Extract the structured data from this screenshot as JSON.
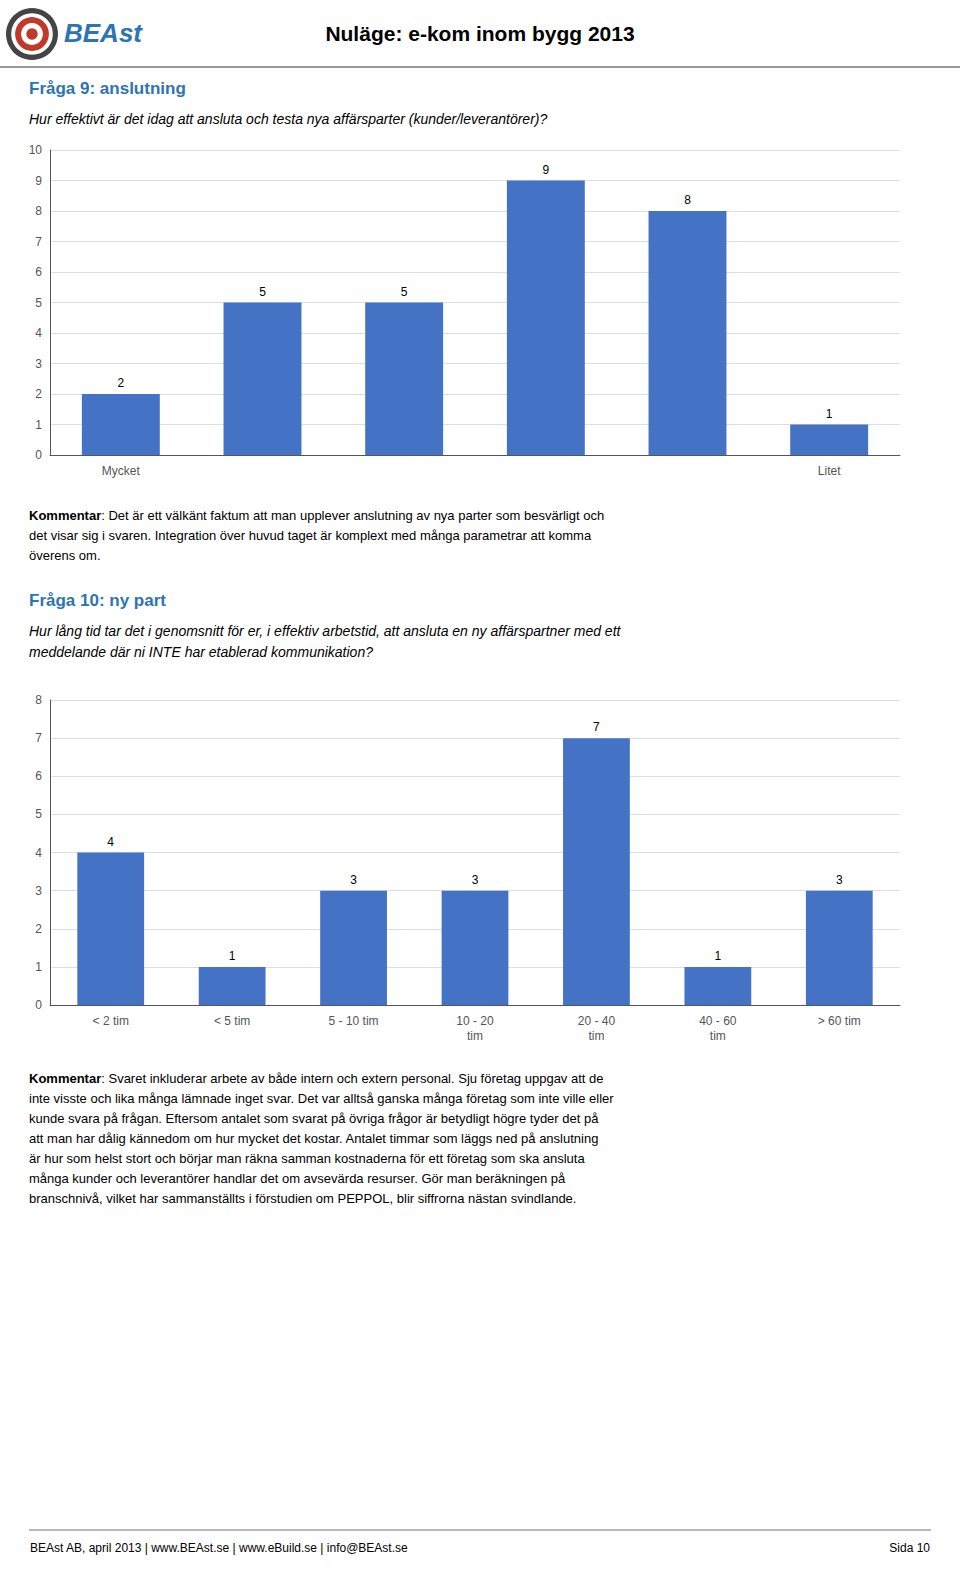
{
  "title": "Nuläge: e-kom inom bygg 2013",
  "annotations": [
    "BEAst",
    "BEAst AB, april 2013 | www.BEAst.se | www.eBuild.se | info@BEAst.se",
    "Sida 10"
  ],
  "chart_data": [
    {
      "type": "bar",
      "title": "Fråga 9: anslutning",
      "subtitle": "Hur effektivt är det idag att ansluta och testa nya affärsparter (kunder/leverantörer)?",
      "categories": [
        "Mycket",
        null,
        null,
        null,
        null,
        "Litet"
      ],
      "values": [
        2,
        5,
        5,
        9,
        8,
        1
      ],
      "color": "#4472C4",
      "ylim": [
        0,
        10
      ],
      "yticks": [
        0,
        1,
        2,
        3,
        4,
        5,
        6,
        7,
        8,
        9,
        10
      ],
      "grid": true,
      "data_labels": true,
      "annotations": [
        "Kommentar: Det är ett välkänt faktum att man upplever anslutning av nya parter som besvärligt och\ndet visar sig i svaren. Integration över huvud taget är komplext med många parametrar att komma\növerens om."
      ]
    },
    {
      "type": "bar",
      "title": "Fråga 10: ny part",
      "subtitle": "Hur lång tid tar det i genomsnitt för er, i effektiv arbetstid, att ansluta en ny affärspartner med ett\nmeddelande där ni INTE har etablerad kommunikation?",
      "categories": [
        "< 2 tim",
        "< 5 tim",
        "5 - 10 tim",
        "10 - 20\ntim",
        "20 - 40\ntim",
        "40 - 60\ntim",
        "> 60 tim"
      ],
      "values": [
        4,
        1,
        3,
        3,
        7,
        1,
        3
      ],
      "color": "#4472C4",
      "ylim": [
        0,
        8
      ],
      "yticks": [
        0,
        1,
        2,
        3,
        4,
        5,
        6,
        7,
        8
      ],
      "grid": true,
      "data_labels": true,
      "annotations": [
        "Kommentar: Svaret inkluderar arbete av både intern och extern personal. Sju företag uppgav att de\ninte visste och lika många lämnade inget svar. Det var alltså ganska många företag som inte ville eller\nkunde svara på frågan. Eftersom antalet som svarat på övriga frågor är betydligt högre tyder det på\natt man har dålig kännedom om hur mycket det kostar. Antalet timmar som läggs ned på anslutning\när hur som helst stort och börjar man räkna samman kostnaderna för ett företag som ska ansluta\nmånga kunder och leverantörer handlar det om avsevärda resurser. Gör man beräkningen på\nbranschnivå, vilket har sammanställts i förstudien om PEPPOL, blir siffrorna nästan svindlande."
      ]
    }
  ]
}
